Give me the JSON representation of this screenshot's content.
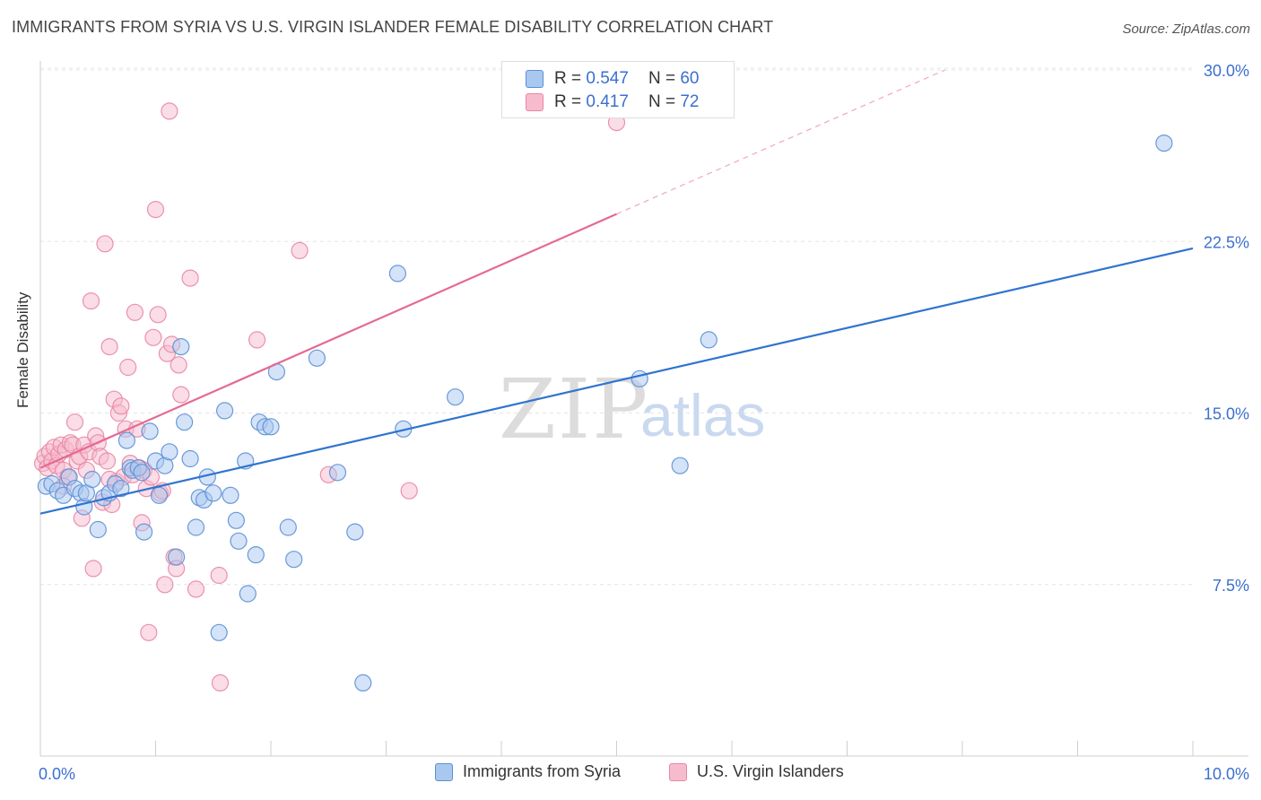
{
  "title": "IMMIGRANTS FROM SYRIA VS U.S. VIRGIN ISLANDER FEMALE DISABILITY CORRELATION CHART",
  "source": "Source: ZipAtlas.com",
  "watermark": {
    "zip": "ZIP",
    "atlas": "atlas"
  },
  "legend_top": [
    {
      "r_label": "R =",
      "r_value": "0.547",
      "n_label": "N =",
      "n_value": "60"
    },
    {
      "r_label": "R =",
      "r_value": "0.417",
      "n_label": "N =",
      "n_value": "72"
    }
  ],
  "legend_bottom": [
    "Immigrants from Syria",
    "U.S. Virgin Islanders"
  ],
  "colors": {
    "blue_fill": "#a9c8f0",
    "blue_stroke": "#5b8fd6",
    "blue_line": "#2f74d0",
    "pink_fill": "#f6bccd",
    "pink_stroke": "#ea86a5",
    "pink_line": "#e56a93",
    "axis_label": "#3b6fd0"
  },
  "chart_data": {
    "type": "scatter",
    "title": "IMMIGRANTS FROM SYRIA VS U.S. VIRGIN ISLANDER FEMALE DISABILITY CORRELATION CHART",
    "xlabel": "",
    "ylabel": "Female Disability",
    "xlim": [
      0,
      10
    ],
    "ylim": [
      0,
      31
    ],
    "x_tick_labels": [
      "0.0%",
      "10.0%"
    ],
    "y_ticks": [
      7.5,
      15.0,
      22.5,
      30.0
    ],
    "y_tick_labels": [
      "7.5%",
      "15.0%",
      "22.5%",
      "30.0%"
    ],
    "grid": true,
    "series": [
      {
        "name": "Immigrants from Syria",
        "R": 0.547,
        "N": 60,
        "trend": {
          "x": [
            0,
            10
          ],
          "y": [
            10.6,
            22.2
          ]
        },
        "points": [
          [
            0.05,
            11.8
          ],
          [
            0.1,
            11.9
          ],
          [
            0.15,
            11.6
          ],
          [
            0.2,
            11.4
          ],
          [
            0.25,
            12.2
          ],
          [
            0.3,
            11.7
          ],
          [
            0.35,
            11.5
          ],
          [
            0.38,
            10.9
          ],
          [
            0.4,
            11.5
          ],
          [
            0.45,
            12.1
          ],
          [
            0.5,
            9.9
          ],
          [
            0.55,
            11.3
          ],
          [
            0.6,
            11.5
          ],
          [
            0.65,
            11.9
          ],
          [
            0.7,
            11.7
          ],
          [
            0.75,
            13.8
          ],
          [
            0.78,
            12.6
          ],
          [
            0.8,
            12.5
          ],
          [
            0.85,
            12.6
          ],
          [
            0.88,
            12.4
          ],
          [
            0.9,
            9.8
          ],
          [
            0.95,
            14.2
          ],
          [
            1.0,
            12.9
          ],
          [
            1.03,
            11.4
          ],
          [
            1.08,
            12.7
          ],
          [
            1.12,
            13.3
          ],
          [
            1.18,
            8.7
          ],
          [
            1.22,
            17.9
          ],
          [
            1.25,
            14.6
          ],
          [
            1.3,
            13.0
          ],
          [
            1.35,
            10.0
          ],
          [
            1.38,
            11.3
          ],
          [
            1.42,
            11.2
          ],
          [
            1.45,
            12.2
          ],
          [
            1.5,
            11.5
          ],
          [
            1.55,
            5.4
          ],
          [
            1.6,
            15.1
          ],
          [
            1.65,
            11.4
          ],
          [
            1.7,
            10.3
          ],
          [
            1.72,
            9.4
          ],
          [
            1.78,
            12.9
          ],
          [
            1.8,
            7.1
          ],
          [
            1.87,
            8.8
          ],
          [
            1.9,
            14.6
          ],
          [
            1.95,
            14.4
          ],
          [
            2.0,
            14.4
          ],
          [
            2.05,
            16.8
          ],
          [
            2.15,
            10.0
          ],
          [
            2.2,
            8.6
          ],
          [
            2.4,
            17.4
          ],
          [
            2.58,
            12.4
          ],
          [
            2.73,
            9.8
          ],
          [
            2.8,
            3.2
          ],
          [
            3.1,
            21.1
          ],
          [
            3.15,
            14.3
          ],
          [
            3.6,
            15.7
          ],
          [
            5.2,
            16.5
          ],
          [
            5.55,
            12.7
          ],
          [
            5.8,
            18.2
          ],
          [
            9.75,
            26.8
          ]
        ]
      },
      {
        "name": "U.S. Virgin Islanders",
        "R": 0.417,
        "N": 72,
        "trend": {
          "x": [
            0,
            5.0
          ],
          "y": [
            12.6,
            23.7
          ]
        },
        "trend_extension": {
          "x": [
            5.0,
            7.85
          ],
          "y": [
            23.7,
            30.0
          ]
        },
        "points": [
          [
            0.02,
            12.8
          ],
          [
            0.04,
            13.1
          ],
          [
            0.06,
            12.6
          ],
          [
            0.08,
            13.3
          ],
          [
            0.1,
            12.9
          ],
          [
            0.12,
            13.5
          ],
          [
            0.14,
            12.7
          ],
          [
            0.16,
            13.2
          ],
          [
            0.18,
            13.6
          ],
          [
            0.2,
            12.5
          ],
          [
            0.22,
            13.4
          ],
          [
            0.24,
            12.2
          ],
          [
            0.26,
            13.7
          ],
          [
            0.28,
            13.6
          ],
          [
            0.3,
            14.6
          ],
          [
            0.32,
            12.9
          ],
          [
            0.34,
            13.1
          ],
          [
            0.36,
            10.4
          ],
          [
            0.38,
            13.6
          ],
          [
            0.4,
            12.5
          ],
          [
            0.42,
            13.3
          ],
          [
            0.44,
            19.9
          ],
          [
            0.46,
            8.2
          ],
          [
            0.48,
            14.0
          ],
          [
            0.5,
            13.7
          ],
          [
            0.52,
            13.1
          ],
          [
            0.54,
            11.1
          ],
          [
            0.56,
            22.4
          ],
          [
            0.58,
            12.9
          ],
          [
            0.6,
            17.9
          ],
          [
            0.62,
            11.0
          ],
          [
            0.64,
            15.6
          ],
          [
            0.66,
            12.0
          ],
          [
            0.68,
            15.0
          ],
          [
            0.7,
            15.3
          ],
          [
            0.72,
            12.2
          ],
          [
            0.74,
            14.3
          ],
          [
            0.76,
            17.0
          ],
          [
            0.78,
            12.8
          ],
          [
            0.8,
            12.3
          ],
          [
            0.82,
            19.4
          ],
          [
            0.84,
            14.3
          ],
          [
            0.86,
            12.6
          ],
          [
            0.88,
            10.2
          ],
          [
            0.9,
            12.5
          ],
          [
            0.92,
            11.7
          ],
          [
            0.94,
            5.4
          ],
          [
            0.96,
            12.2
          ],
          [
            0.98,
            18.3
          ],
          [
            1.0,
            23.9
          ],
          [
            1.02,
            19.3
          ],
          [
            1.04,
            11.5
          ],
          [
            1.06,
            11.6
          ],
          [
            1.08,
            7.5
          ],
          [
            1.1,
            17.6
          ],
          [
            1.12,
            28.2
          ],
          [
            1.14,
            18.0
          ],
          [
            1.16,
            8.7
          ],
          [
            1.18,
            8.2
          ],
          [
            1.2,
            17.1
          ],
          [
            1.22,
            15.8
          ],
          [
            1.3,
            20.9
          ],
          [
            1.35,
            7.3
          ],
          [
            1.55,
            7.9
          ],
          [
            1.56,
            3.2
          ],
          [
            1.88,
            18.2
          ],
          [
            2.25,
            22.1
          ],
          [
            2.5,
            12.3
          ],
          [
            3.2,
            11.6
          ],
          [
            5.0,
            27.7
          ],
          [
            0.2,
            11.8
          ],
          [
            0.6,
            12.1
          ]
        ]
      }
    ]
  }
}
